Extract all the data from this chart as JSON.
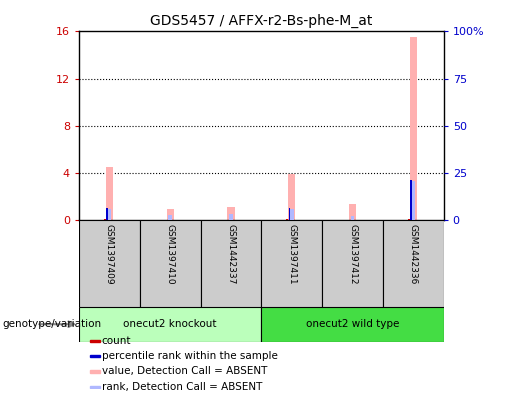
{
  "title": "GDS5457 / AFFX-r2-Bs-phe-M_at",
  "samples": [
    "GSM1397409",
    "GSM1397410",
    "GSM1442337",
    "GSM1397411",
    "GSM1397412",
    "GSM1442336"
  ],
  "groups": [
    {
      "label": "onecut2 knockout",
      "color_light": "#aaffaa",
      "color_dark": "#44dd44",
      "n_samples": 3
    },
    {
      "label": "onecut2 wild type",
      "color_light": "#44ee44",
      "color_dark": "#22cc22",
      "n_samples": 3
    }
  ],
  "absent_value_heights": [
    4.5,
    0.9,
    1.1,
    3.9,
    1.4,
    15.5
  ],
  "absent_rank_heights": [
    0.9,
    0.45,
    0.55,
    0.9,
    0.35,
    3.3
  ],
  "count_values": [
    0.08,
    0,
    0,
    0.08,
    0,
    0.08
  ],
  "percentile_values": [
    6.5,
    0,
    0,
    6.5,
    0,
    21.5
  ],
  "left_ylim": [
    0,
    16
  ],
  "right_ylim": [
    0,
    100
  ],
  "left_yticks": [
    0,
    4,
    8,
    12,
    16
  ],
  "right_yticks": [
    0,
    25,
    50,
    75,
    100
  ],
  "right_yticklabels": [
    "0",
    "25",
    "50",
    "75",
    "100%"
  ],
  "left_color": "#cc0000",
  "right_color": "#0000cc",
  "absent_value_color": "#ffb0b0",
  "absent_rank_color": "#b0b8ff",
  "count_color": "#cc0000",
  "percentile_color": "#0000cc",
  "legend_items": [
    {
      "label": "count",
      "color": "#cc0000"
    },
    {
      "label": "percentile rank within the sample",
      "color": "#0000cc"
    },
    {
      "label": "value, Detection Call = ABSENT",
      "color": "#ffb0b0"
    },
    {
      "label": "rank, Detection Call = ABSENT",
      "color": "#b0b8ff"
    }
  ],
  "genotype_label": "genotype/variation",
  "background_color": "#ffffff",
  "sample_box_color": "#cccccc",
  "group1_color": "#bbffbb",
  "group2_color": "#44dd44"
}
